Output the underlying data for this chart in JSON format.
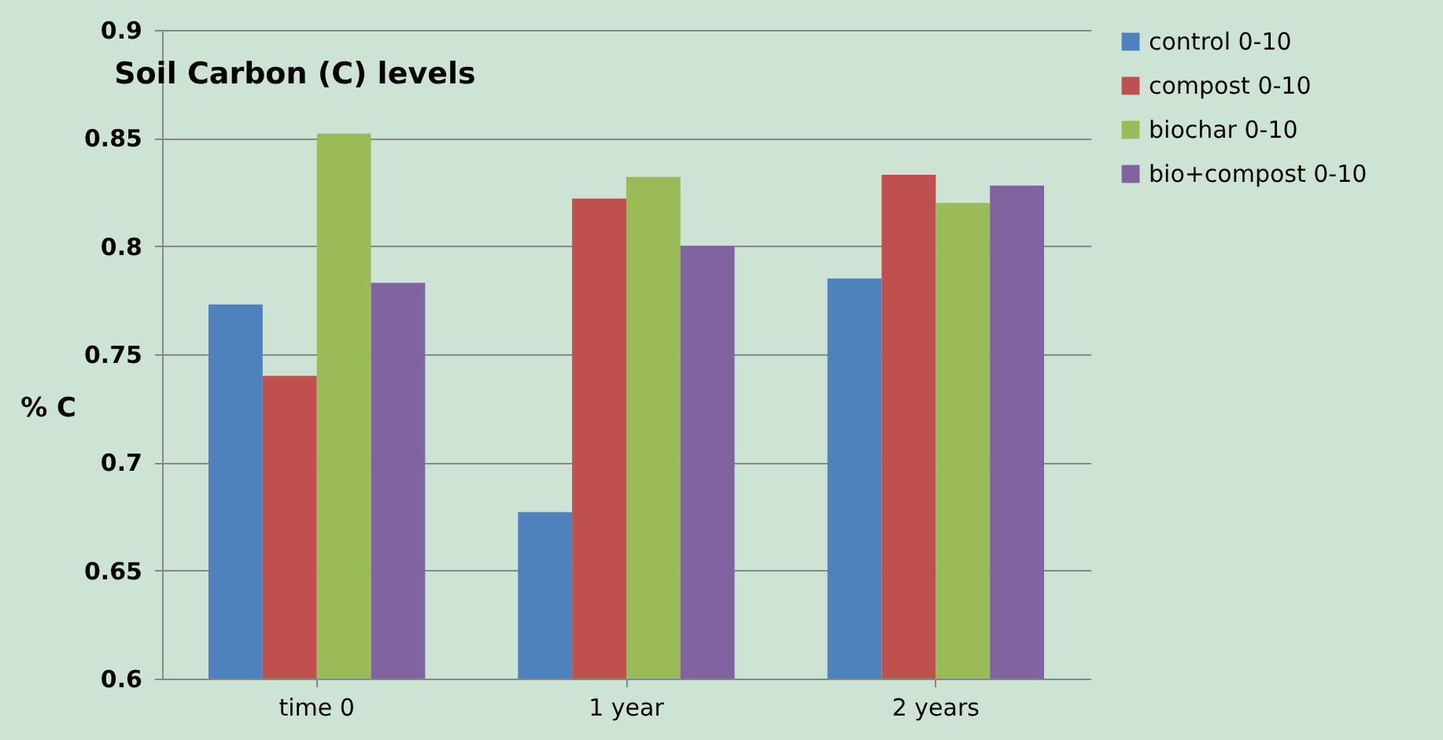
{
  "chart_data": {
    "type": "bar",
    "title": "Soil Carbon (C) levels",
    "ylabel": "% C",
    "categories": [
      "time 0",
      "1 year",
      "2 years"
    ],
    "series": [
      {
        "name": "control 0-10",
        "color": "#4f81bd",
        "values": [
          0.773,
          0.677,
          0.785
        ]
      },
      {
        "name": "compost 0-10",
        "color": "#c0504d",
        "values": [
          0.74,
          0.822,
          0.833
        ]
      },
      {
        "name": "biochar 0-10",
        "color": "#9bbb59",
        "values": [
          0.852,
          0.832,
          0.82
        ]
      },
      {
        "name": "bio+compost 0-10",
        "color": "#8064a2",
        "values": [
          0.783,
          0.8,
          0.828
        ]
      }
    ],
    "ylim": [
      0.6,
      0.9
    ],
    "yticks": [
      0.6,
      0.65,
      0.7,
      0.75,
      0.8,
      0.85,
      0.9
    ],
    "grid": "y",
    "legend": "right"
  }
}
